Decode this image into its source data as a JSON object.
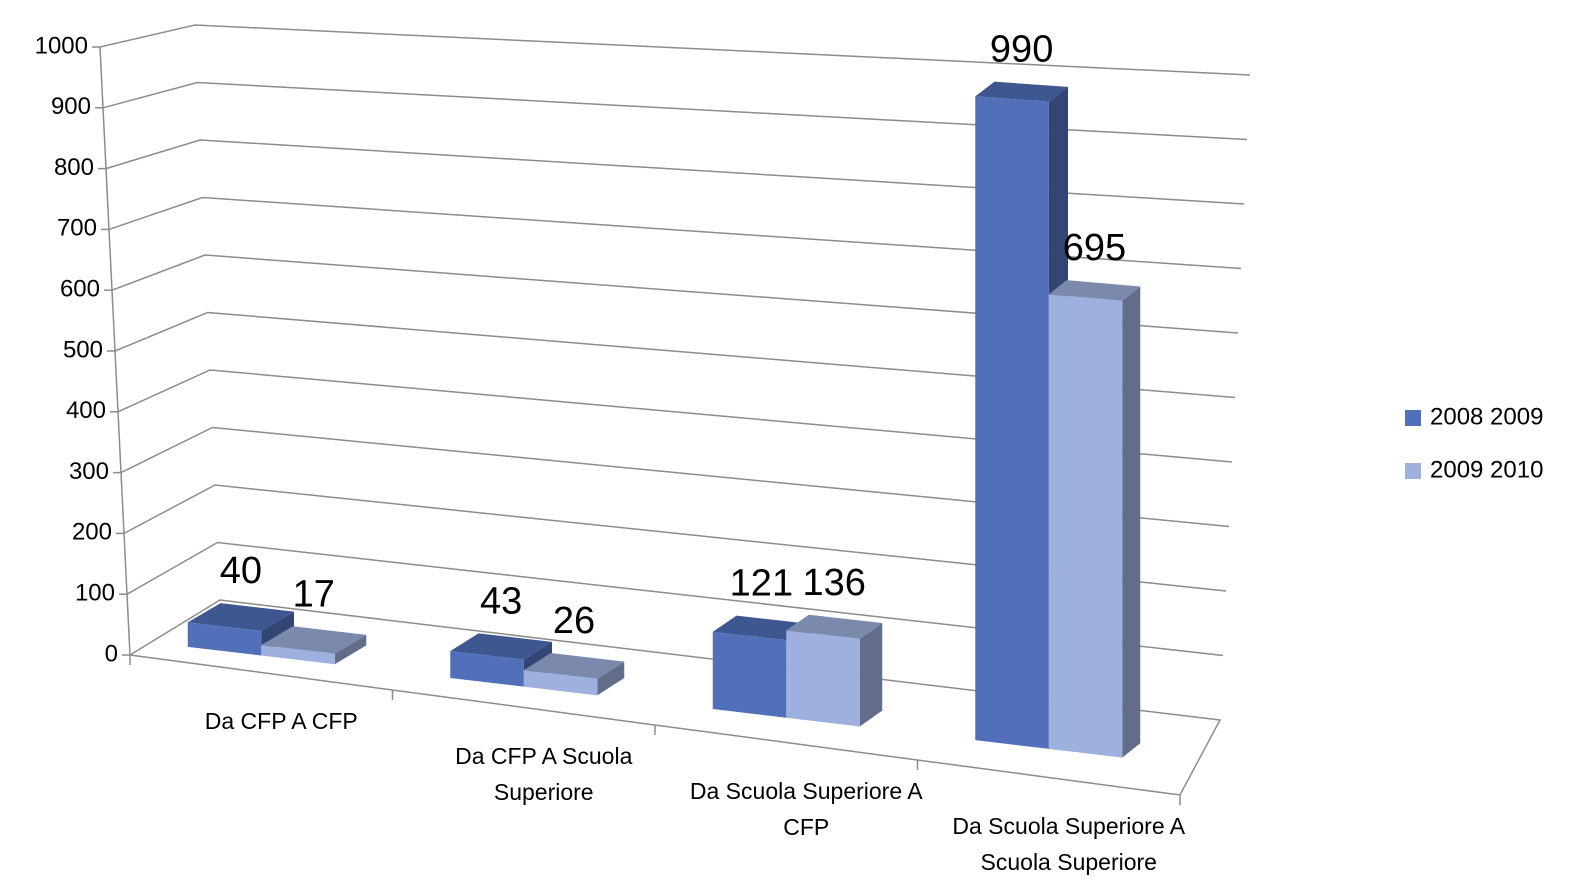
{
  "chart_data": {
    "type": "bar3d",
    "categories": [
      "Da CFP A CFP",
      "Da CFP A Scuola Superiore",
      "Da Scuola Superiore A CFP",
      "Da Scuola Superiore A Scuola Superiore"
    ],
    "series": [
      {
        "name": "2008 2009",
        "color": "#5170b9",
        "values": [
          40,
          43,
          121,
          990
        ]
      },
      {
        "name": "2009 2010",
        "color": "#9eb0dd",
        "values": [
          17,
          26,
          136,
          695
        ]
      }
    ],
    "ylim": [
      0,
      1000
    ],
    "yticks": [
      0,
      100,
      200,
      300,
      400,
      500,
      600,
      700,
      800,
      900,
      1000
    ],
    "grid": true,
    "legend": "right"
  }
}
